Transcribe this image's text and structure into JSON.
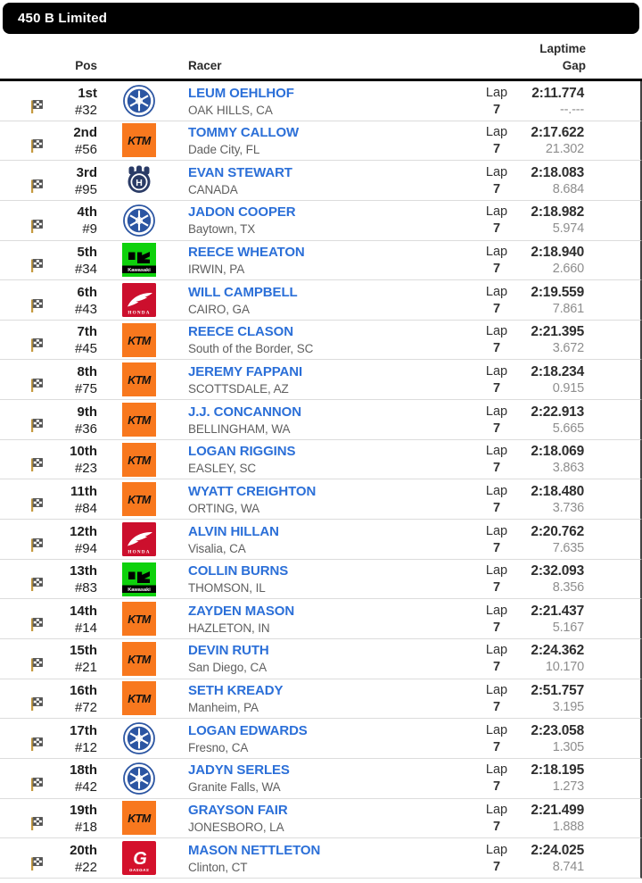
{
  "title_bar": {
    "title": "450 B Limited"
  },
  "labels": {
    "lap": "Lap"
  },
  "table": {
    "headers": {
      "pos": "Pos",
      "racer": "Racer",
      "laptime": "Laptime",
      "gap": "Gap"
    },
    "rows": [
      {
        "pos": "1st",
        "num": "#32",
        "brand": "yamaha",
        "name": "LEUM OEHLHOF",
        "hometown": "OAK HILLS, CA",
        "lap": "7",
        "laptime": "2:11.774",
        "gap": "--.---"
      },
      {
        "pos": "2nd",
        "num": "#56",
        "brand": "ktm",
        "name": "TOMMY CALLOW",
        "hometown": "Dade City, FL",
        "lap": "7",
        "laptime": "2:17.622",
        "gap": "21.302"
      },
      {
        "pos": "3rd",
        "num": "#95",
        "brand": "husqvarna",
        "name": "EVAN STEWART",
        "hometown": "CANADA",
        "lap": "7",
        "laptime": "2:18.083",
        "gap": "8.684"
      },
      {
        "pos": "4th",
        "num": "#9",
        "brand": "yamaha",
        "name": "JADON COOPER",
        "hometown": "Baytown, TX",
        "lap": "7",
        "laptime": "2:18.982",
        "gap": "5.974"
      },
      {
        "pos": "5th",
        "num": "#34",
        "brand": "kawasaki",
        "name": "REECE WHEATON",
        "hometown": "IRWIN, PA",
        "lap": "7",
        "laptime": "2:18.940",
        "gap": "2.660"
      },
      {
        "pos": "6th",
        "num": "#43",
        "brand": "honda",
        "name": "WILL CAMPBELL",
        "hometown": "CAIRO, GA",
        "lap": "7",
        "laptime": "2:19.559",
        "gap": "7.861"
      },
      {
        "pos": "7th",
        "num": "#45",
        "brand": "ktm",
        "name": "REECE CLASON",
        "hometown": "South of the Border, SC",
        "lap": "7",
        "laptime": "2:21.395",
        "gap": "3.672"
      },
      {
        "pos": "8th",
        "num": "#75",
        "brand": "ktm",
        "name": "JEREMY FAPPANI",
        "hometown": "SCOTTSDALE, AZ",
        "lap": "7",
        "laptime": "2:18.234",
        "gap": "0.915"
      },
      {
        "pos": "9th",
        "num": "#36",
        "brand": "ktm",
        "name": "J.J. CONCANNON",
        "hometown": "BELLINGHAM, WA",
        "lap": "7",
        "laptime": "2:22.913",
        "gap": "5.665"
      },
      {
        "pos": "10th",
        "num": "#23",
        "brand": "ktm",
        "name": "LOGAN RIGGINS",
        "hometown": "EASLEY, SC",
        "lap": "7",
        "laptime": "2:18.069",
        "gap": "3.863"
      },
      {
        "pos": "11th",
        "num": "#84",
        "brand": "ktm",
        "name": "WYATT CREIGHTON",
        "hometown": "ORTING, WA",
        "lap": "7",
        "laptime": "2:18.480",
        "gap": "3.736"
      },
      {
        "pos": "12th",
        "num": "#94",
        "brand": "honda",
        "name": "ALVIN HILLAN",
        "hometown": "Visalia, CA",
        "lap": "7",
        "laptime": "2:20.762",
        "gap": "7.635"
      },
      {
        "pos": "13th",
        "num": "#83",
        "brand": "kawasaki",
        "name": "COLLIN BURNS",
        "hometown": "THOMSON, IL",
        "lap": "7",
        "laptime": "2:32.093",
        "gap": "8.356"
      },
      {
        "pos": "14th",
        "num": "#14",
        "brand": "ktm",
        "name": "ZAYDEN MASON",
        "hometown": "HAZLETON, IN",
        "lap": "7",
        "laptime": "2:21.437",
        "gap": "5.167"
      },
      {
        "pos": "15th",
        "num": "#21",
        "brand": "ktm",
        "name": "DEVIN RUTH",
        "hometown": "San Diego, CA",
        "lap": "7",
        "laptime": "2:24.362",
        "gap": "10.170"
      },
      {
        "pos": "16th",
        "num": "#72",
        "brand": "ktm",
        "name": "SETH KREADY",
        "hometown": "Manheim, PA",
        "lap": "7",
        "laptime": "2:51.757",
        "gap": "3.195"
      },
      {
        "pos": "17th",
        "num": "#12",
        "brand": "yamaha",
        "name": "LOGAN EDWARDS",
        "hometown": "Fresno, CA",
        "lap": "7",
        "laptime": "2:23.058",
        "gap": "1.305"
      },
      {
        "pos": "18th",
        "num": "#42",
        "brand": "yamaha",
        "name": "JADYN SERLES",
        "hometown": "Granite Falls, WA",
        "lap": "7",
        "laptime": "2:18.195",
        "gap": "1.273"
      },
      {
        "pos": "19th",
        "num": "#18",
        "brand": "ktm",
        "name": "GRAYSON FAIR",
        "hometown": "JONESBORO, LA",
        "lap": "7",
        "laptime": "2:21.499",
        "gap": "1.888"
      },
      {
        "pos": "20th",
        "num": "#22",
        "brand": "gasgas",
        "name": "MASON NETTLETON",
        "hometown": "Clinton, CT",
        "lap": "7",
        "laptime": "2:24.025",
        "gap": "8.741"
      }
    ]
  },
  "icons": {
    "row_flag": "checkered-flag"
  },
  "brands": {
    "yamaha": {
      "label": "",
      "bg": "#ffffff",
      "fg": "#2b55a2"
    },
    "ktm": {
      "label": "KTM",
      "bg": "#f8781e",
      "fg": "#111111"
    },
    "husqvarna": {
      "label": "H",
      "bg": "#ffffff",
      "fg": "#2a3b66"
    },
    "kawasaki": {
      "label": "Kawasaki",
      "bg": "#0ed10c",
      "fg": "#000000"
    },
    "honda": {
      "label": "HONDA",
      "bg": "#cc0f2d",
      "fg": "#ffffff"
    },
    "gasgas": {
      "label": "GASGAS",
      "bg": "#d4112c",
      "fg": "#ffffff"
    }
  },
  "colors": {
    "title_bar_bg": "#000000",
    "link_blue": "#2b6fd8",
    "row_divider": "#dcdcdc",
    "row_right_border": "#444444",
    "gap_gray": "#8e8e8e",
    "flag_pole": "#c59a3f"
  }
}
